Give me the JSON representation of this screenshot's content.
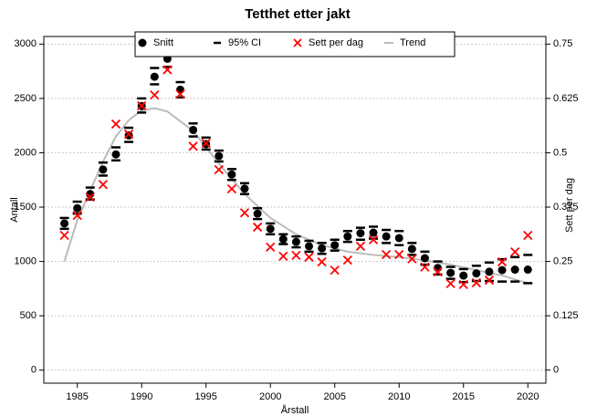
{
  "chart_data": {
    "type": "line",
    "title": "Tetthet etter jakt",
    "xlabel": "Årstall",
    "ylabel": "Antall",
    "y2label": "Sett per dag",
    "x": [
      1984,
      1985,
      1986,
      1987,
      1988,
      1989,
      1990,
      1991,
      1992,
      1993,
      1994,
      1995,
      1996,
      1997,
      1998,
      1999,
      2000,
      2001,
      2002,
      2003,
      2004,
      2005,
      2006,
      2007,
      2008,
      2009,
      2010,
      2011,
      2012,
      2013,
      2014,
      2015,
      2016,
      2017,
      2018,
      2019,
      2020
    ],
    "xlim": [
      1982.4,
      2021.4
    ],
    "xticks": [
      1985,
      1990,
      1995,
      2000,
      2005,
      2010,
      2015,
      2020
    ],
    "ylim": [
      -120,
      3070
    ],
    "yticks": [
      0,
      500,
      1000,
      1500,
      2000,
      2500,
      3000
    ],
    "y2lim": [
      -0.03,
      0.7675
    ],
    "y2ticks": [
      0,
      0.125,
      0.25,
      0.375,
      0.5,
      0.625,
      0.75
    ],
    "grid": true,
    "legend": "top",
    "series": [
      {
        "name": "Snitt",
        "color": "#000000",
        "values": [
          1350,
          1490,
          1620,
          1845,
          1985,
          2160,
          2430,
          2700,
          2865,
          2580,
          2210,
          2080,
          1970,
          1800,
          1670,
          1440,
          1300,
          1205,
          1180,
          1140,
          1120,
          1150,
          1230,
          1260,
          1265,
          1230,
          1215,
          1115,
          1030,
          940,
          895,
          870,
          890,
          905,
          920,
          925,
          925
        ]
      },
      {
        "name": "95% CI",
        "color": "#000000",
        "lower": [
          1300,
          1440,
          1570,
          1790,
          1930,
          2100,
          2370,
          2630,
          2790,
          2510,
          2150,
          2030,
          1920,
          1750,
          1620,
          1390,
          1250,
          1160,
          1130,
          1090,
          1070,
          1100,
          1180,
          1200,
          1210,
          1170,
          1150,
          1060,
          970,
          880,
          840,
          810,
          820,
          820,
          815,
          815,
          800
        ],
        "upper": [
          1400,
          1550,
          1680,
          1910,
          2050,
          2230,
          2500,
          2780,
          2940,
          2650,
          2270,
          2140,
          2020,
          1850,
          1720,
          1490,
          1350,
          1250,
          1230,
          1190,
          1170,
          1200,
          1280,
          1310,
          1320,
          1290,
          1280,
          1170,
          1090,
          1000,
          950,
          930,
          960,
          990,
          1020,
          1040,
          1060
        ]
      },
      {
        "name": "Sett per dag",
        "color": "#ff0000",
        "axis": "y2",
        "values": [
          0.31,
          0.356,
          0.398,
          0.427,
          0.566,
          0.543,
          0.608,
          0.633,
          0.691,
          0.635,
          0.515,
          0.522,
          0.461,
          0.417,
          0.362,
          0.329,
          0.283,
          0.262,
          0.264,
          0.26,
          0.249,
          0.23,
          0.253,
          0.285,
          0.3,
          0.266,
          0.266,
          0.256,
          0.237,
          0.226,
          0.199,
          0.197,
          0.201,
          0.207,
          0.249,
          0.272,
          0.31
        ]
      },
      {
        "name": "Trend",
        "color": "#bbbbbb",
        "x": [
          1984,
          1985,
          1986,
          1987,
          1988,
          1989,
          1990,
          1991,
          1992,
          1994,
          1996,
          1998,
          2000,
          2002,
          2004,
          2006,
          2008,
          2010,
          2012,
          2014,
          2016,
          2018,
          2020
        ],
        "values": [
          1000,
          1380,
          1650,
          1920,
          2150,
          2300,
          2390,
          2410,
          2380,
          2200,
          1900,
          1620,
          1400,
          1250,
          1150,
          1090,
          1060,
          1040,
          1010,
          970,
          920,
          870,
          800
        ]
      }
    ]
  }
}
